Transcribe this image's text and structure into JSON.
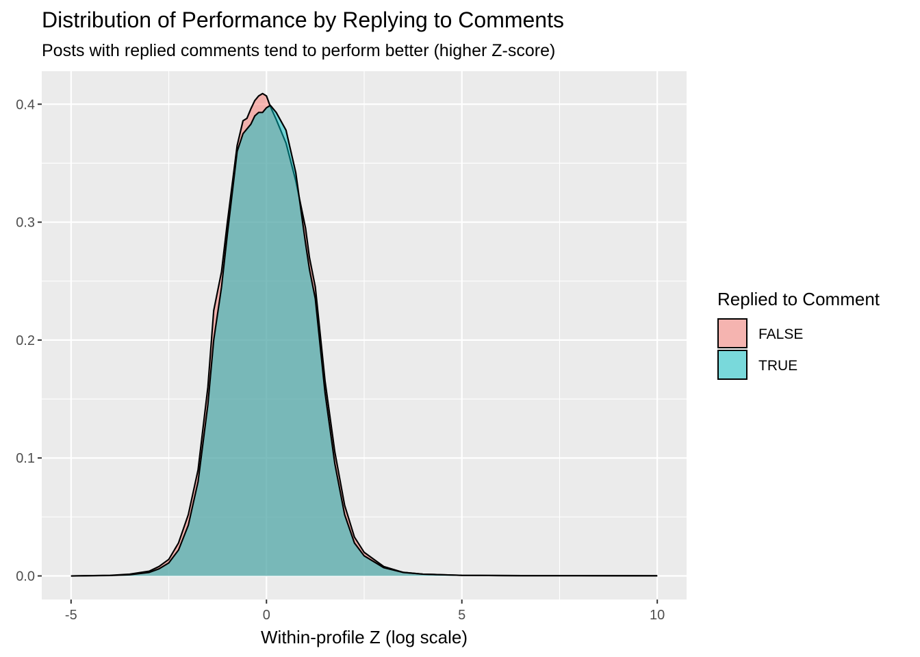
{
  "chart_data": {
    "type": "area",
    "title": "Distribution of Performance by Replying to Comments",
    "subtitle": "Posts with replied comments tend to perform better (higher Z-score)",
    "xlabel": "Within-profile Z (log scale)",
    "ylabel": "",
    "xlim": [
      -5.75,
      10.75
    ],
    "ylim": [
      -0.02,
      0.428
    ],
    "x_ticks": [
      -5,
      0,
      5,
      10
    ],
    "x_tick_labels": [
      "-5",
      "0",
      "5",
      "10"
    ],
    "y_ticks": [
      0.0,
      0.1,
      0.2,
      0.3,
      0.4
    ],
    "y_tick_labels": [
      "0.0",
      "0.1",
      "0.2",
      "0.3",
      "0.4"
    ],
    "grid": true,
    "legend": {
      "title": "Replied to Comment",
      "position": "right"
    },
    "series": [
      {
        "name": "FALSE",
        "color": "#F8766D",
        "x": [
          -5,
          -4,
          -3.5,
          -3,
          -2.75,
          -2.5,
          -2.25,
          -2,
          -1.75,
          -1.5,
          -1.35,
          -1.15,
          -1,
          -0.75,
          -0.6,
          -0.5,
          -0.4,
          -0.3,
          -0.2,
          -0.1,
          0,
          0.1,
          0.25,
          0.5,
          0.75,
          1,
          1.1,
          1.25,
          1.5,
          1.75,
          2,
          2.25,
          2.5,
          3,
          3.5,
          4,
          4.5,
          5,
          6,
          7,
          8,
          10
        ],
        "values": [
          0,
          0.0005,
          0.0015,
          0.004,
          0.008,
          0.014,
          0.028,
          0.052,
          0.09,
          0.16,
          0.225,
          0.258,
          0.3,
          0.365,
          0.386,
          0.388,
          0.396,
          0.403,
          0.407,
          0.409,
          0.407,
          0.398,
          0.387,
          0.367,
          0.335,
          0.295,
          0.27,
          0.245,
          0.165,
          0.105,
          0.06,
          0.033,
          0.02,
          0.008,
          0.003,
          0.0015,
          0.001,
          0.0005,
          0.0003,
          0.0002,
          0.0002,
          0.0001
        ]
      },
      {
        "name": "TRUE",
        "color": "#00BFC4",
        "x": [
          -5,
          -4,
          -3.5,
          -3,
          -2.75,
          -2.5,
          -2.25,
          -2,
          -1.75,
          -1.5,
          -1.35,
          -1.15,
          -1,
          -0.75,
          -0.6,
          -0.5,
          -0.4,
          -0.3,
          -0.2,
          -0.1,
          0,
          0.1,
          0.25,
          0.5,
          0.75,
          1,
          1.1,
          1.25,
          1.5,
          1.75,
          2,
          2.25,
          2.5,
          3,
          3.5,
          4,
          4.5,
          5,
          6,
          7,
          8,
          10
        ],
        "values": [
          0,
          0.0004,
          0.001,
          0.003,
          0.006,
          0.011,
          0.022,
          0.043,
          0.08,
          0.145,
          0.2,
          0.245,
          0.29,
          0.36,
          0.375,
          0.379,
          0.383,
          0.39,
          0.393,
          0.393,
          0.397,
          0.399,
          0.393,
          0.378,
          0.342,
          0.282,
          0.26,
          0.235,
          0.155,
          0.095,
          0.052,
          0.028,
          0.017,
          0.007,
          0.003,
          0.0015,
          0.001,
          0.0005,
          0.0003,
          0.0002,
          0.0002,
          0.0001
        ]
      }
    ]
  }
}
